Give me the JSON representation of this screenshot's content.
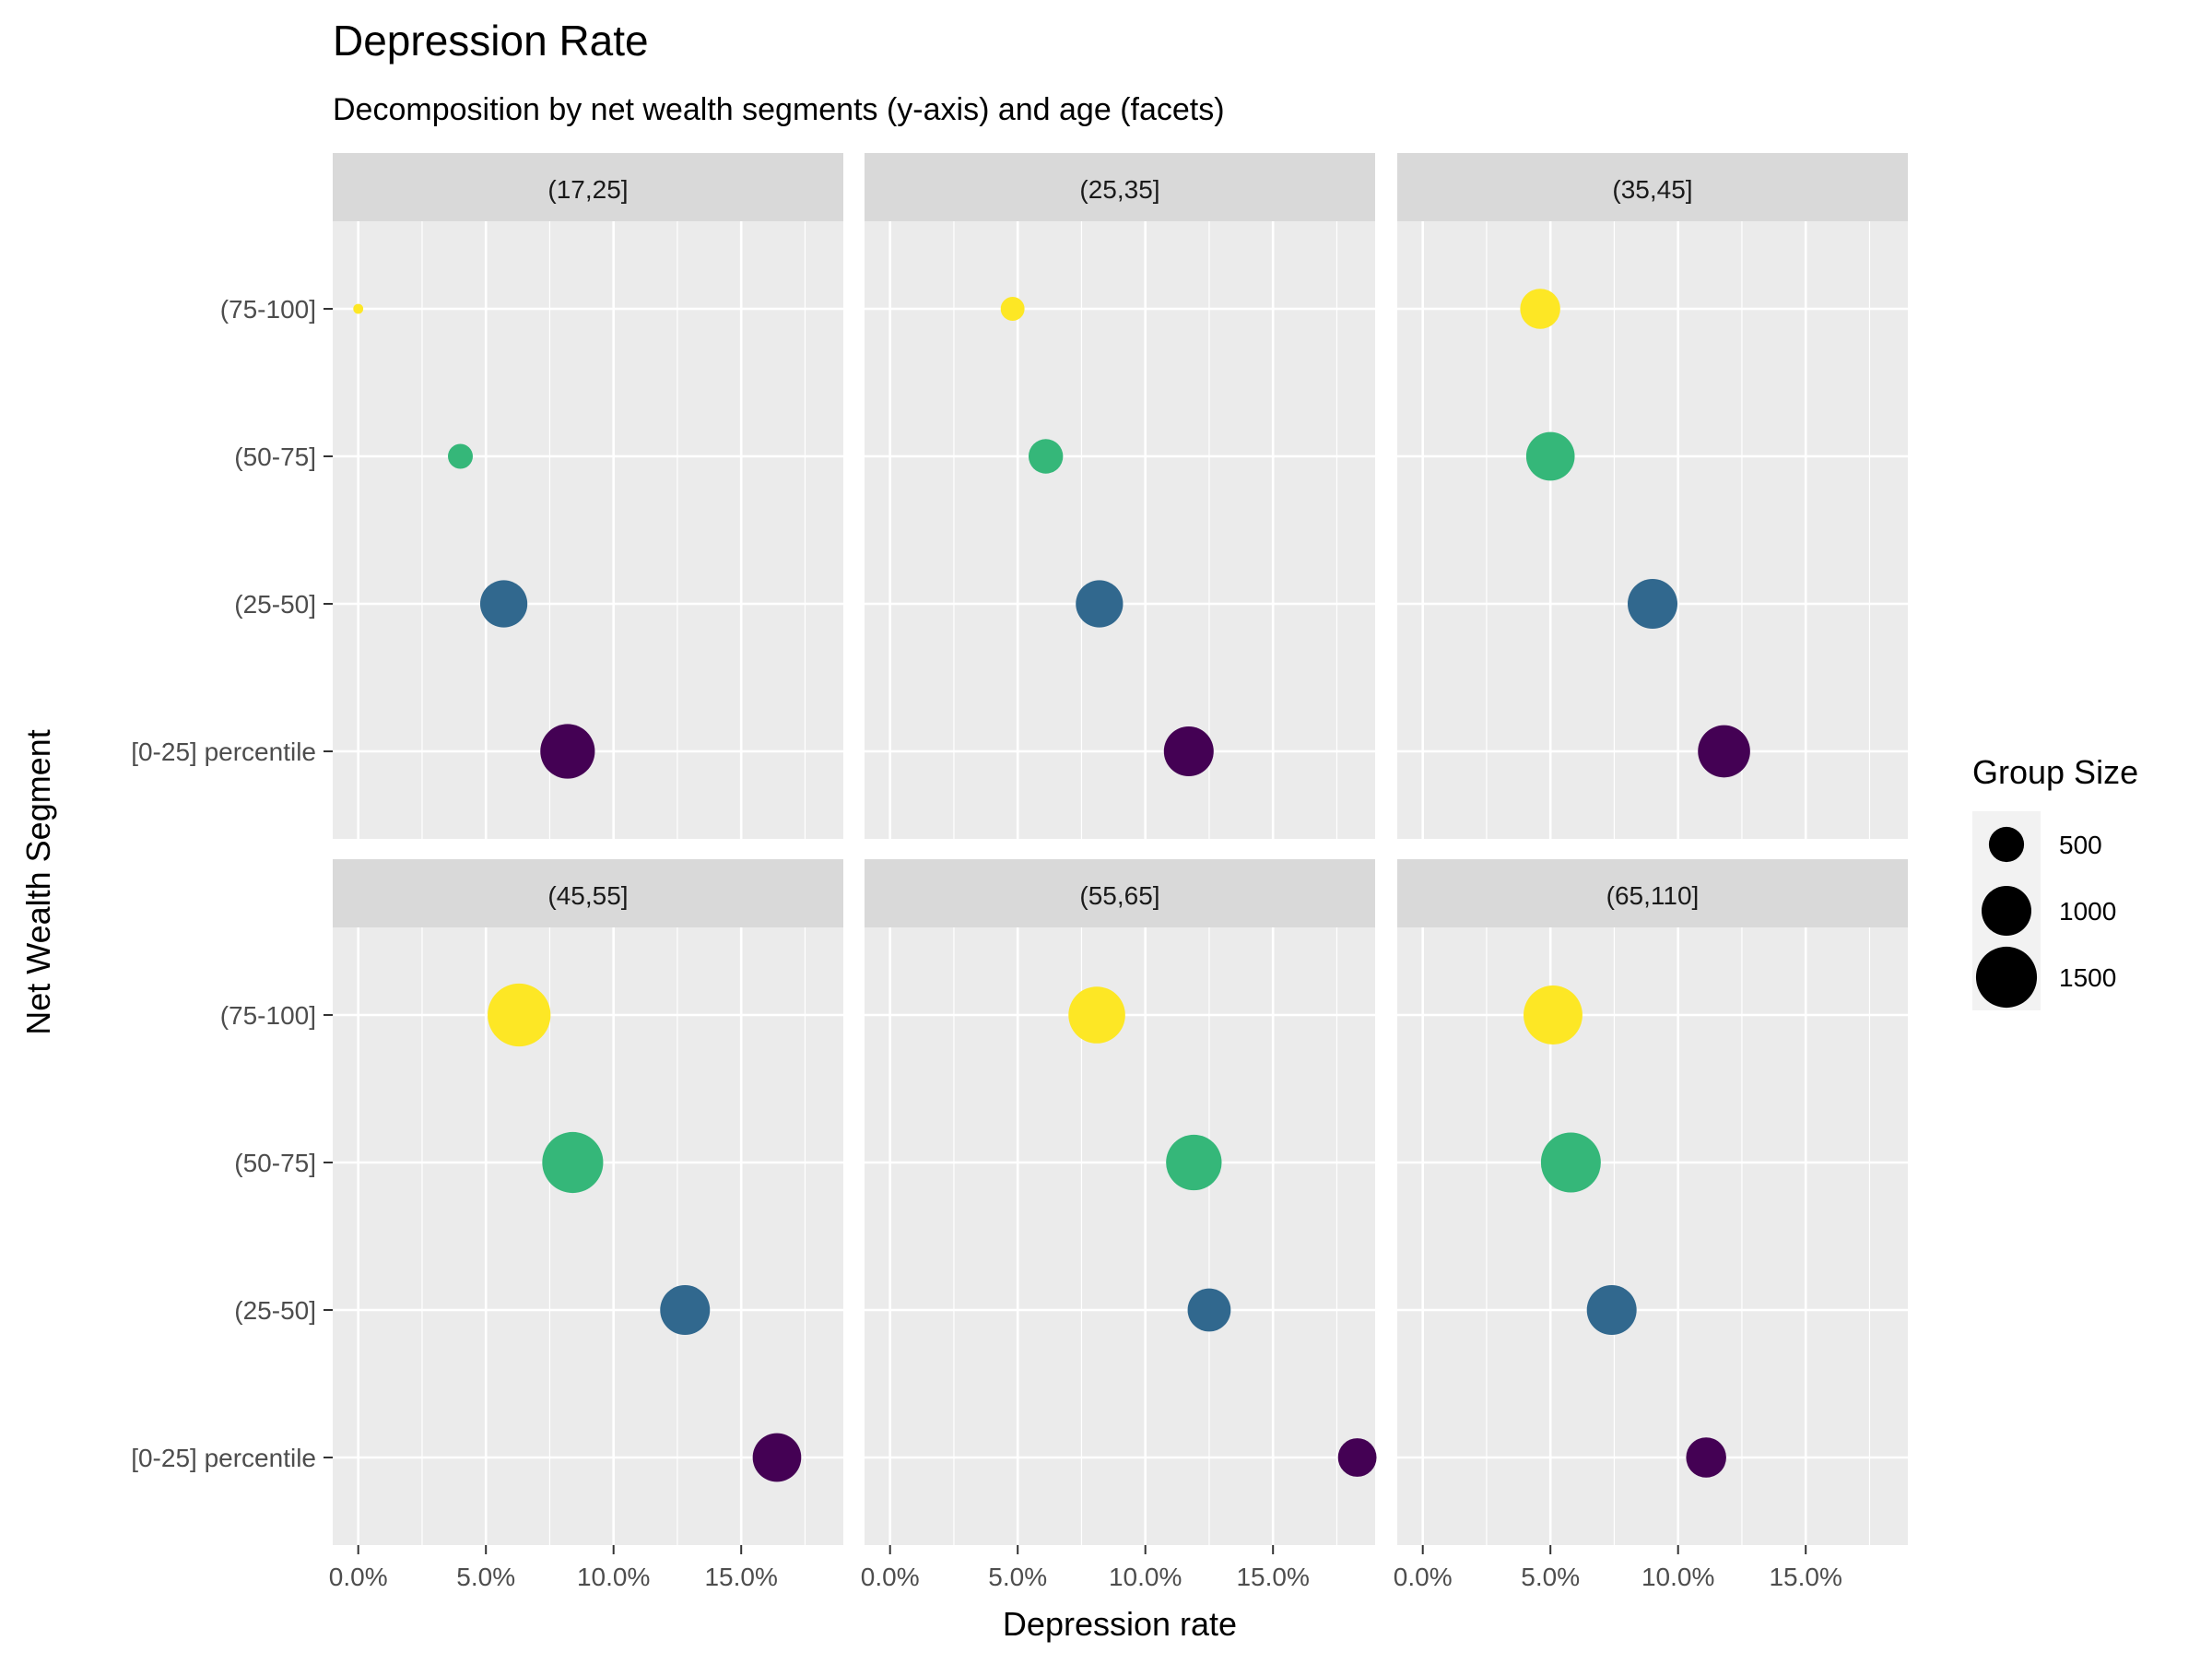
{
  "chart_data": {
    "type": "scatter",
    "title": "Depression Rate",
    "subtitle": "Decomposition by net wealth segments (y-axis) and age (facets)",
    "xlabel": "Depression rate",
    "ylabel": "Net Wealth Segment",
    "xlim": [
      -0.01,
      0.19
    ],
    "x_ticks": [
      0.0,
      0.05,
      0.1,
      0.15
    ],
    "x_tick_labels": [
      "0.0%",
      "5.0%",
      "10.0%",
      "15.0%"
    ],
    "categories": [
      "[0-25] percentile",
      "(25-50]",
      "(50-75]",
      "(75-100]"
    ],
    "colors": {
      "[0-25] percentile": "#440154",
      "(25-50]": "#31688e",
      "(50-75]": "#35b779",
      "(75-100]": "#fde725"
    },
    "grid": true,
    "legend": {
      "title": "Group Size",
      "position": "right",
      "entries": [
        {
          "label": "500",
          "value": 500
        },
        {
          "label": "1000",
          "value": 1000
        },
        {
          "label": "1500",
          "value": 1500
        }
      ]
    },
    "facets": [
      {
        "label": "(17,25]",
        "points": [
          {
            "segment": "(75-100]",
            "x": 0.0,
            "size": 40
          },
          {
            "segment": "(50-75]",
            "x": 0.04,
            "size": 250
          },
          {
            "segment": "(25-50]",
            "x": 0.057,
            "size": 900
          },
          {
            "segment": "[0-25] percentile",
            "x": 0.082,
            "size": 1200
          }
        ]
      },
      {
        "label": "(25,35]",
        "points": [
          {
            "segment": "(75-100]",
            "x": 0.048,
            "size": 230
          },
          {
            "segment": "(50-75]",
            "x": 0.061,
            "size": 480
          },
          {
            "segment": "(25-50]",
            "x": 0.082,
            "size": 900
          },
          {
            "segment": "[0-25] percentile",
            "x": 0.117,
            "size": 1000
          }
        ]
      },
      {
        "label": "(35,45]",
        "points": [
          {
            "segment": "(75-100]",
            "x": 0.046,
            "size": 650
          },
          {
            "segment": "(50-75]",
            "x": 0.05,
            "size": 950
          },
          {
            "segment": "(25-50]",
            "x": 0.09,
            "size": 1000
          },
          {
            "segment": "[0-25] percentile",
            "x": 0.118,
            "size": 1100
          }
        ]
      },
      {
        "label": "(45,55]",
        "points": [
          {
            "segment": "(75-100]",
            "x": 0.063,
            "size": 1600
          },
          {
            "segment": "(50-75]",
            "x": 0.084,
            "size": 1500
          },
          {
            "segment": "(25-50]",
            "x": 0.128,
            "size": 1000
          },
          {
            "segment": "[0-25] percentile",
            "x": 0.164,
            "size": 950
          }
        ]
      },
      {
        "label": "(55,65]",
        "points": [
          {
            "segment": "(75-100]",
            "x": 0.081,
            "size": 1300
          },
          {
            "segment": "(50-75]",
            "x": 0.119,
            "size": 1250
          },
          {
            "segment": "(25-50]",
            "x": 0.125,
            "size": 750
          },
          {
            "segment": "[0-25] percentile",
            "x": 0.183,
            "size": 600
          }
        ]
      },
      {
        "label": "(65,110]",
        "points": [
          {
            "segment": "(75-100]",
            "x": 0.051,
            "size": 1400
          },
          {
            "segment": "(50-75]",
            "x": 0.058,
            "size": 1450
          },
          {
            "segment": "(25-50]",
            "x": 0.074,
            "size": 1000
          },
          {
            "segment": "[0-25] percentile",
            "x": 0.111,
            "size": 650
          }
        ]
      }
    ]
  }
}
